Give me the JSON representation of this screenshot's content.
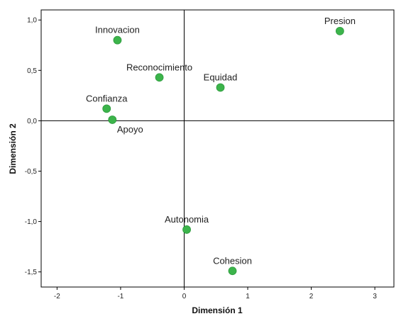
{
  "chart_data": {
    "type": "scatter",
    "xlabel": "Dimensión 1",
    "ylabel": "Dimensión 2",
    "xlim": [
      -2.25,
      3.3
    ],
    "ylim": [
      -1.65,
      1.1
    ],
    "xticks": [
      -2,
      -1,
      0,
      1,
      2,
      3
    ],
    "yticks": [
      1.0,
      0.5,
      0.0,
      -0.5,
      -1.0,
      -1.5
    ],
    "xtick_labels": [
      "-2",
      "-1",
      "0",
      "1",
      "2",
      "3"
    ],
    "ytick_labels": [
      "1,0",
      "0,5",
      "0,0",
      "-0,5",
      "-1,0",
      "-1,5"
    ],
    "reference_lines": {
      "x": 0,
      "y": 0
    },
    "grid": false,
    "marker_color": "#3cb44b",
    "points": [
      {
        "label": "Presion",
        "x": 2.45,
        "y": 0.89,
        "label_pos": "above"
      },
      {
        "label": "Innovacion",
        "x": -1.05,
        "y": 0.8,
        "label_pos": "above"
      },
      {
        "label": "Reconocimiento",
        "x": -0.39,
        "y": 0.43,
        "label_pos": "above"
      },
      {
        "label": "Equidad",
        "x": 0.57,
        "y": 0.33,
        "label_pos": "above"
      },
      {
        "label": "Confianza",
        "x": -1.22,
        "y": 0.12,
        "label_pos": "above"
      },
      {
        "label": "Apoyo",
        "x": -1.13,
        "y": 0.01,
        "label_pos": "below"
      },
      {
        "label": "Autonomia",
        "x": 0.04,
        "y": -1.08,
        "label_pos": "above"
      },
      {
        "label": "Cohesion",
        "x": 0.76,
        "y": -1.49,
        "label_pos": "above"
      }
    ]
  }
}
